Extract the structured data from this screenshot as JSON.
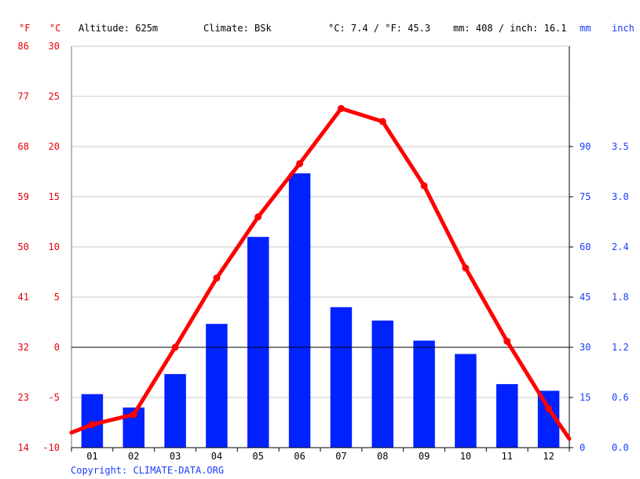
{
  "header": {
    "unit_f": "°F",
    "unit_c": "°C",
    "altitude": "Altitude: 625m",
    "climate": "Climate: BSk",
    "temp_avg": "°C: 7.4 / °F: 45.3",
    "precip_avg": "mm: 408 / inch: 16.1",
    "unit_mm": "mm",
    "unit_inch": "inch"
  },
  "copyright": "Copyright: CLIMATE-DATA.ORG",
  "colors": {
    "temperature": "#ff0000",
    "precipitation": "#0022ff",
    "temp_axis": "#e8000b",
    "precip_axis": "#1a3cff"
  },
  "chart_data": {
    "type": "bar+line",
    "categories": [
      "01",
      "02",
      "03",
      "04",
      "05",
      "06",
      "07",
      "08",
      "09",
      "10",
      "11",
      "12"
    ],
    "series": [
      {
        "kind": "bar",
        "axis": "precipitation_mm",
        "values": [
          16,
          12,
          22,
          37,
          63,
          82,
          42,
          38,
          32,
          28,
          19,
          17
        ]
      },
      {
        "kind": "line",
        "axis": "temperature_c",
        "values": [
          -7.7,
          -6.7,
          0.0,
          6.9,
          13.0,
          18.3,
          23.8,
          22.5,
          16.1,
          7.9,
          0.6,
          -6.1
        ]
      }
    ],
    "temp_c_ticks": [
      "30",
      "25",
      "20",
      "15",
      "10",
      "5",
      "0",
      "-5",
      "-10"
    ],
    "temp_f_ticks": [
      "86",
      "77",
      "68",
      "59",
      "50",
      "41",
      "32",
      "23",
      "14"
    ],
    "precip_mm_ticks": [
      "90",
      "75",
      "60",
      "45",
      "30",
      "15",
      "0"
    ],
    "precip_inch_ticks": [
      "3.5",
      "3.0",
      "2.4",
      "1.8",
      "1.2",
      "0.6",
      "0.0"
    ],
    "temp_c_range": [
      -10,
      30
    ],
    "precip_mm_range": [
      0,
      120
    ],
    "grid": true
  }
}
